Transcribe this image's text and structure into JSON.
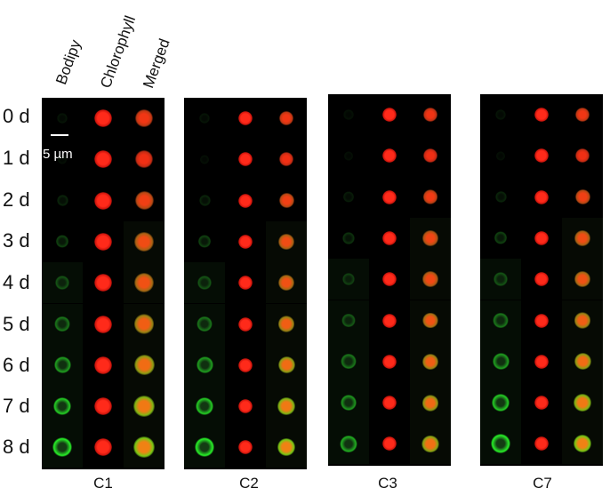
{
  "columns": [
    "Bodipy",
    "Chlorophyll",
    "Merged"
  ],
  "rows": [
    "0 d",
    "1 d",
    "2 d",
    "3 d",
    "4 d",
    "5 d",
    "6 d",
    "7 d",
    "8 d"
  ],
  "panels": [
    "C1",
    "C2",
    "C3",
    "C7"
  ],
  "scale_label": "5 µm"
}
